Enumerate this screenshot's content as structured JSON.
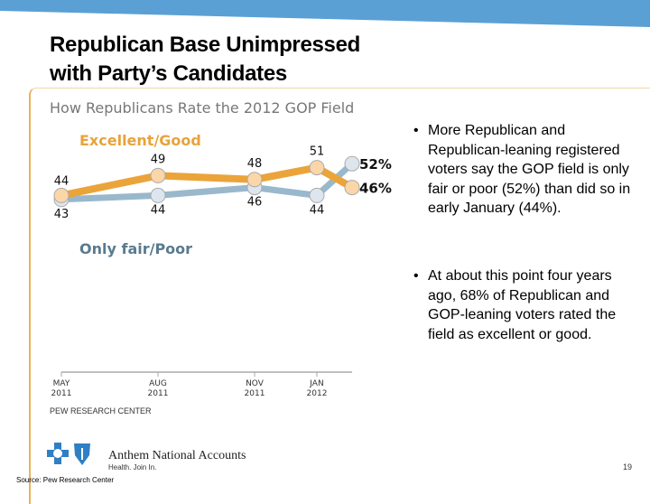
{
  "slide": {
    "title_line1": "Republican Base Unimpressed",
    "title_line2": "with Party’s Candidates",
    "bullets": [
      "More Republican and Republican-leaning registered voters say the GOP field is only fair or poor (52%) than did so in early January (44%).",
      "At about this point four years ago, 68% of Republican and GOP-leaning voters rated the field as excellent or good."
    ],
    "bullet_glyph": "•",
    "source": "Source: Pew Research Center",
    "page_number": "19",
    "logo_name": "Anthem National Accounts",
    "logo_tagline": "Health. Join In.",
    "accent_color": "#5aa0d4"
  },
  "chart_data": {
    "type": "line",
    "title": "How Republicans Rate the 2012 GOP Field",
    "categories": [
      "MAY 2011",
      "AUG 2011",
      "NOV 2011",
      "JAN 2012",
      ""
    ],
    "tick_labels": [
      [
        "MAY",
        "2011"
      ],
      [
        "AUG",
        "2011"
      ],
      [
        "NOV",
        "2011"
      ],
      [
        "JAN",
        "2012"
      ]
    ],
    "series": [
      {
        "name": "Excellent/Good",
        "values": [
          44,
          49,
          48,
          51,
          46
        ],
        "color": "#eba43a",
        "labels": [
          "44",
          "49",
          "48",
          "51",
          "46%"
        ]
      },
      {
        "name": "Only fair/Poor",
        "values": [
          43,
          44,
          46,
          44,
          52
        ],
        "color": "#9ab8cc",
        "labels": [
          "43",
          "44",
          "46",
          "44",
          "52%"
        ]
      }
    ],
    "source_note": "PEW RESEARCH CENTER",
    "grid": false,
    "legend": "inline"
  }
}
